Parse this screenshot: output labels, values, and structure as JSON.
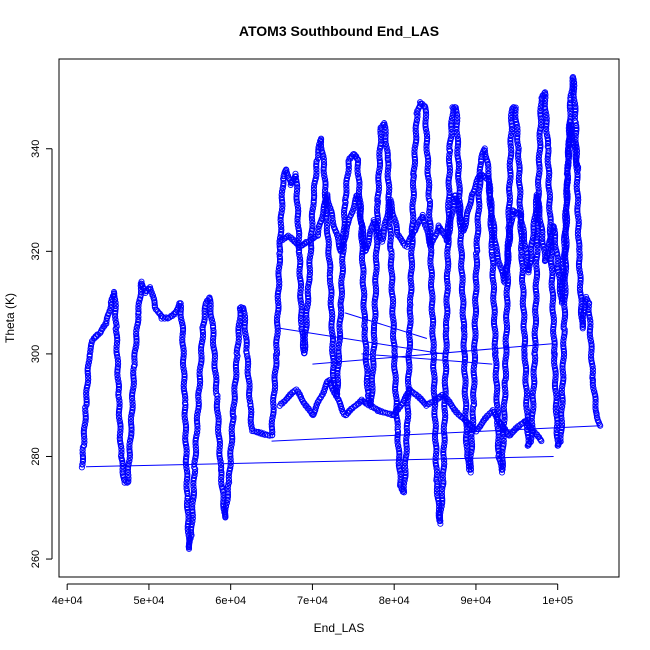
{
  "chart_data": {
    "type": "scatter",
    "title": "ATOM3 Southbound End_LAS",
    "xlabel": "End_LAS",
    "ylabel": "Theta (K)",
    "xlim": [
      39000,
      107500
    ],
    "ylim": [
      256.5,
      357.5
    ],
    "x_ticks": [
      40000,
      50000,
      60000,
      70000,
      80000,
      90000,
      100000
    ],
    "x_tick_labels": [
      "4e+04",
      "5e+04",
      "6e+04",
      "7e+04",
      "8e+04",
      "9e+04",
      "1e+05"
    ],
    "y_ticks": [
      260,
      280,
      300,
      320,
      340
    ],
    "y_tick_labels": [
      "260",
      "280",
      "300",
      "320",
      "340"
    ],
    "marker": "open-circle",
    "point_color": "#0000ff",
    "line_color": "#0000ff",
    "grid": false,
    "series": [
      {
        "points": [
          [
            41800,
            278
          ],
          [
            42000,
            282
          ],
          [
            42300,
            290
          ],
          [
            42700,
            300
          ],
          [
            43200,
            303
          ],
          [
            44000,
            304
          ],
          [
            44800,
            306
          ],
          [
            45400,
            310
          ],
          [
            45800,
            312
          ],
          [
            46000,
            305
          ],
          [
            46300,
            292
          ],
          [
            46600,
            280
          ],
          [
            47000,
            275
          ],
          [
            47400,
            275
          ],
          [
            47800,
            285
          ],
          [
            48200,
            298
          ],
          [
            48700,
            308
          ],
          [
            49100,
            314
          ],
          [
            49600,
            312
          ],
          [
            50200,
            313
          ],
          [
            50800,
            309
          ],
          [
            51600,
            307
          ],
          [
            52400,
            307
          ],
          [
            53200,
            308
          ],
          [
            53800,
            310
          ],
          [
            54100,
            305
          ],
          [
            54400,
            290
          ],
          [
            54700,
            272
          ],
          [
            54900,
            262
          ],
          [
            55200,
            265
          ],
          [
            55600,
            278
          ],
          [
            56100,
            292
          ],
          [
            56600,
            305
          ],
          [
            57000,
            310
          ],
          [
            57400,
            311
          ],
          [
            57800,
            305
          ],
          [
            58300,
            292
          ],
          [
            58800,
            277
          ],
          [
            59300,
            268
          ],
          [
            59800,
            275
          ],
          [
            60300,
            288
          ],
          [
            60800,
            300
          ],
          [
            61200,
            309
          ],
          [
            61600,
            309
          ],
          [
            62000,
            300
          ],
          [
            62400,
            290
          ],
          [
            62600,
            285
          ],
          [
            65000,
            284
          ],
          [
            65600,
            300
          ],
          [
            66000,
            320
          ],
          [
            66400,
            334
          ],
          [
            66800,
            336
          ],
          [
            67400,
            333
          ],
          [
            68000,
            335
          ],
          [
            68400,
            320
          ],
          [
            68700,
            305
          ],
          [
            69000,
            300
          ],
          [
            69600,
            315
          ],
          [
            70100,
            330
          ],
          [
            70600,
            338
          ],
          [
            71000,
            342
          ],
          [
            71400,
            337
          ],
          [
            71800,
            325
          ],
          [
            72200,
            315
          ],
          [
            72600,
            295
          ],
          [
            73000,
            292
          ],
          [
            73500,
            310
          ],
          [
            74000,
            330
          ],
          [
            74500,
            338
          ],
          [
            75000,
            339
          ],
          [
            75500,
            338
          ],
          [
            76000,
            325
          ],
          [
            76400,
            305
          ],
          [
            76800,
            292
          ],
          [
            77200,
            290
          ],
          [
            77600,
            305
          ],
          [
            78000,
            330
          ],
          [
            78400,
            344
          ],
          [
            78800,
            345
          ],
          [
            79200,
            338
          ],
          [
            79600,
            320
          ],
          [
            80000,
            300
          ],
          [
            80400,
            285
          ],
          [
            80800,
            274
          ],
          [
            81200,
            273
          ],
          [
            81600,
            285
          ],
          [
            82000,
            310
          ],
          [
            82400,
            335
          ],
          [
            82800,
            347
          ],
          [
            83200,
            349
          ],
          [
            83800,
            348
          ],
          [
            84300,
            330
          ],
          [
            84800,
            300
          ],
          [
            85200,
            275
          ],
          [
            85600,
            267
          ],
          [
            86000,
            275
          ],
          [
            86400,
            305
          ],
          [
            86800,
            340
          ],
          [
            87200,
            348
          ],
          [
            87600,
            348
          ],
          [
            88000,
            330
          ],
          [
            88500,
            305
          ],
          [
            88900,
            280
          ],
          [
            89300,
            277
          ],
          [
            89700,
            290
          ],
          [
            90100,
            320
          ],
          [
            90600,
            338
          ],
          [
            91100,
            340
          ],
          [
            91600,
            335
          ],
          [
            92000,
            320
          ],
          [
            92400,
            300
          ],
          [
            92800,
            280
          ],
          [
            93200,
            277
          ],
          [
            93600,
            295
          ],
          [
            94000,
            325
          ],
          [
            94400,
            348
          ],
          [
            94800,
            348
          ],
          [
            95200,
            340
          ],
          [
            95600,
            320
          ],
          [
            96000,
            300
          ],
          [
            96400,
            282
          ],
          [
            96800,
            283
          ],
          [
            97200,
            300
          ],
          [
            97600,
            330
          ],
          [
            98000,
            350
          ],
          [
            98400,
            351
          ],
          [
            98800,
            340
          ],
          [
            99200,
            320
          ],
          [
            99600,
            300
          ],
          [
            100000,
            282
          ],
          [
            100400,
            283
          ],
          [
            100800,
            305
          ],
          [
            101200,
            335
          ],
          [
            101600,
            350
          ],
          [
            101900,
            354
          ],
          [
            102200,
            345
          ],
          [
            102600,
            320
          ],
          [
            103000,
            305
          ],
          [
            103400,
            311
          ],
          [
            103800,
            310
          ],
          [
            104300,
            295
          ],
          [
            104800,
            288
          ],
          [
            105200,
            286
          ]
        ]
      },
      {
        "points": [
          [
            66000,
            322
          ],
          [
            67000,
            323
          ],
          [
            68500,
            321
          ],
          [
            69500,
            322
          ],
          [
            70600,
            323
          ],
          [
            71800,
            331
          ],
          [
            72500,
            326
          ],
          [
            73500,
            320
          ],
          [
            74500,
            326
          ],
          [
            75500,
            331
          ],
          [
            76500,
            320
          ],
          [
            77500,
            326
          ],
          [
            78500,
            322
          ],
          [
            79500,
            330
          ],
          [
            80500,
            323
          ],
          [
            81500,
            321
          ],
          [
            82500,
            324
          ],
          [
            83500,
            327
          ],
          [
            84500,
            321
          ],
          [
            85500,
            325
          ],
          [
            86500,
            322
          ],
          [
            87500,
            331
          ],
          [
            88500,
            324
          ],
          [
            89500,
            331
          ],
          [
            90500,
            335
          ],
          [
            91500,
            334
          ],
          [
            92500,
            320
          ],
          [
            93500,
            314
          ],
          [
            94500,
            328
          ],
          [
            95500,
            327
          ],
          [
            96500,
            316
          ],
          [
            97500,
            331
          ],
          [
            98500,
            318
          ],
          [
            99500,
            325
          ],
          [
            100500,
            310
          ],
          [
            101500,
            345
          ],
          [
            102500,
            336
          ]
        ]
      },
      {
        "points": [
          [
            66000,
            290
          ],
          [
            68000,
            293
          ],
          [
            70000,
            288
          ],
          [
            72000,
            295
          ],
          [
            74000,
            288
          ],
          [
            76000,
            291
          ],
          [
            78000,
            289
          ],
          [
            80000,
            288
          ],
          [
            82000,
            293
          ],
          [
            84000,
            290
          ],
          [
            86000,
            292
          ],
          [
            88000,
            288
          ],
          [
            90000,
            285
          ],
          [
            92000,
            289
          ],
          [
            94000,
            284
          ],
          [
            96000,
            287
          ],
          [
            98000,
            283
          ]
        ]
      }
    ],
    "lines": [
      [
        [
          42300,
          278
        ],
        [
          99500,
          280
        ]
      ],
      [
        [
          65000,
          283
        ],
        [
          105200,
          286
        ]
      ],
      [
        [
          66000,
          305
        ],
        [
          86000,
          300
        ]
      ],
      [
        [
          70000,
          298
        ],
        [
          99500,
          302
        ]
      ],
      [
        [
          74000,
          308
        ],
        [
          84000,
          303
        ]
      ],
      [
        [
          76000,
          300
        ],
        [
          92000,
          298
        ]
      ]
    ]
  }
}
